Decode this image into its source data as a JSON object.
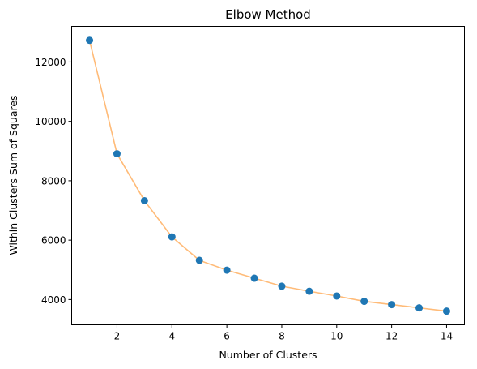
{
  "chart_data": {
    "type": "line",
    "title": "Elbow Method",
    "xlabel": "Number of Clusters",
    "ylabel": "Within Clusters Sum of Squares",
    "x": [
      1,
      2,
      3,
      4,
      5,
      6,
      7,
      8,
      9,
      10,
      11,
      12,
      13,
      14
    ],
    "series": [
      {
        "values": [
          12730,
          8910,
          7330,
          6110,
          5320,
          4990,
          4720,
          4450,
          4280,
          4120,
          3940,
          3830,
          3720,
          3610
        ],
        "color": "#ffbb78",
        "marker_color": "#1f77b4"
      }
    ],
    "xticks": [
      2,
      4,
      6,
      8,
      10,
      12,
      14
    ],
    "yticks": [
      4000,
      6000,
      8000,
      10000,
      12000
    ],
    "xlim": [
      0.35,
      14.65
    ],
    "ylim": [
      3150,
      13200
    ],
    "grid": false,
    "legend": false
  }
}
